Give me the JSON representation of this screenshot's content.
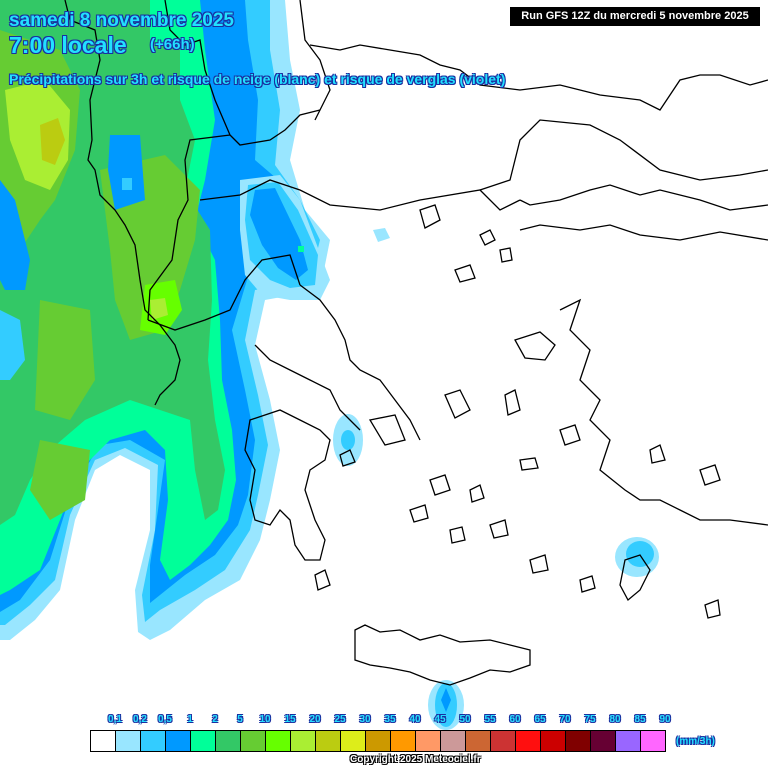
{
  "header": {
    "date": "samedi 8 novembre 2025",
    "time": "7:00 locale",
    "offset": "(+66h)",
    "subtitle": "Précipitations sur 3h et risque de neige (blanc) et risque de verglas (violet)",
    "run": "Run GFS 12Z du mercredi 5 novembre 2025"
  },
  "legend": {
    "unit": "(mm/3h)",
    "labels": [
      "0,1",
      "0,2",
      "0,5",
      "1",
      "2",
      "5",
      "10",
      "15",
      "20",
      "25",
      "30",
      "35",
      "40",
      "45",
      "50",
      "55",
      "60",
      "65",
      "70",
      "75",
      "80",
      "85",
      "90"
    ],
    "colors": [
      "#ffffff",
      "#99e6ff",
      "#33ccff",
      "#0099ff",
      "#00ff99",
      "#33c866",
      "#66cc33",
      "#66ff00",
      "#aaee33",
      "#bbcc11",
      "#dded1a",
      "#cc9900",
      "#ff9900",
      "#ff9966",
      "#cc9999",
      "#cc6633",
      "#cc3333",
      "#ff0f0f",
      "#cc0000",
      "#800000",
      "#660033",
      "#9966ff",
      "#ff66ff"
    ]
  },
  "copyright": "Copyright 2025 Meteociel.fr",
  "map": {
    "region": "Greece / Aegean / Ionian Sea",
    "land_fill": "#ffffff",
    "border_color": "#000000"
  },
  "chart_data": {
    "type": "heatmap",
    "title": "Précipitations sur 3h et risque de neige (blanc) et risque de verglas (violet)",
    "valid_time": "samedi 8 novembre 2025 7:00 locale (+66h)",
    "model_run": "Run GFS 12Z du mercredi 5 novembre 2025",
    "units": "mm/3h",
    "color_scale": {
      "thresholds": [
        0,
        0.1,
        0.2,
        0.5,
        1,
        2,
        5,
        10,
        15,
        20,
        25,
        30,
        35,
        40,
        45,
        50,
        55,
        60,
        65,
        70,
        75,
        80,
        85,
        90
      ],
      "tick_labels": [
        "0,1",
        "0,2",
        "0,5",
        "1",
        "2",
        "5",
        "10",
        "15",
        "20",
        "25",
        "30",
        "35",
        "40",
        "45",
        "50",
        "55",
        "60",
        "65",
        "70",
        "75",
        "80",
        "85",
        "90"
      ]
    },
    "features": [
      {
        "area": "Western Balkans / Albania / Ionian Sea (west half of map)",
        "intensity_mm": "1-10",
        "max_mm": "15-20 (NW corner near Montenegro, central Albania)"
      },
      {
        "area": "North Macedonia / western Greece border band",
        "intensity_mm": "0.1-1"
      },
      {
        "area": "Chalkidiki / Thessaloniki area",
        "intensity_mm": "0.1-1"
      },
      {
        "area": "Saronic Gulf near Athens",
        "intensity_mm": "0.1-0.5"
      },
      {
        "area": "Rhodes / Dodecanese",
        "intensity_mm": "0.1-0.5"
      },
      {
        "area": "South of Crete",
        "intensity_mm": "0.1-1"
      },
      {
        "area": "Aegean Sea, Turkey, mainland Greece east",
        "intensity_mm": "0 (dry)"
      }
    ]
  }
}
